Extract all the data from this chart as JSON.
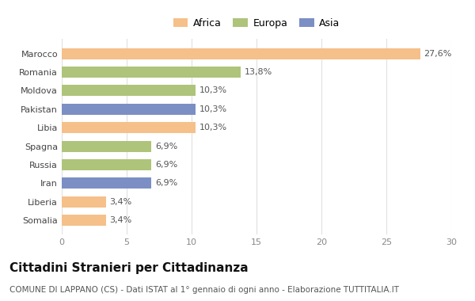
{
  "categories": [
    "Somalia",
    "Liberia",
    "Iran",
    "Russia",
    "Spagna",
    "Libia",
    "Pakistan",
    "Moldova",
    "Romania",
    "Marocco"
  ],
  "values": [
    3.4,
    3.4,
    6.9,
    6.9,
    6.9,
    10.3,
    10.3,
    10.3,
    13.8,
    27.6
  ],
  "colors": [
    "#f5c08a",
    "#f5c08a",
    "#7b8fc4",
    "#aec47a",
    "#aec47a",
    "#f5c08a",
    "#7b8fc4",
    "#aec47a",
    "#aec47a",
    "#f5c08a"
  ],
  "labels": [
    "3,4%",
    "3,4%",
    "6,9%",
    "6,9%",
    "6,9%",
    "10,3%",
    "10,3%",
    "10,3%",
    "13,8%",
    "27,6%"
  ],
  "legend": [
    {
      "label": "Africa",
      "color": "#f5c08a"
    },
    {
      "label": "Europa",
      "color": "#aec47a"
    },
    {
      "label": "Asia",
      "color": "#7b8fc4"
    }
  ],
  "xlim": [
    0,
    30
  ],
  "xticks": [
    0,
    5,
    10,
    15,
    20,
    25,
    30
  ],
  "title": "Cittadini Stranieri per Cittadinanza",
  "subtitle": "COMUNE DI LAPPANO (CS) - Dati ISTAT al 1° gennaio di ogni anno - Elaborazione TUTTITALIA.IT",
  "bg_color": "#ffffff",
  "grid_color": "#e0e0e0",
  "bar_height": 0.6,
  "title_fontsize": 11,
  "subtitle_fontsize": 7.5,
  "label_fontsize": 8,
  "tick_fontsize": 8,
  "legend_fontsize": 9
}
